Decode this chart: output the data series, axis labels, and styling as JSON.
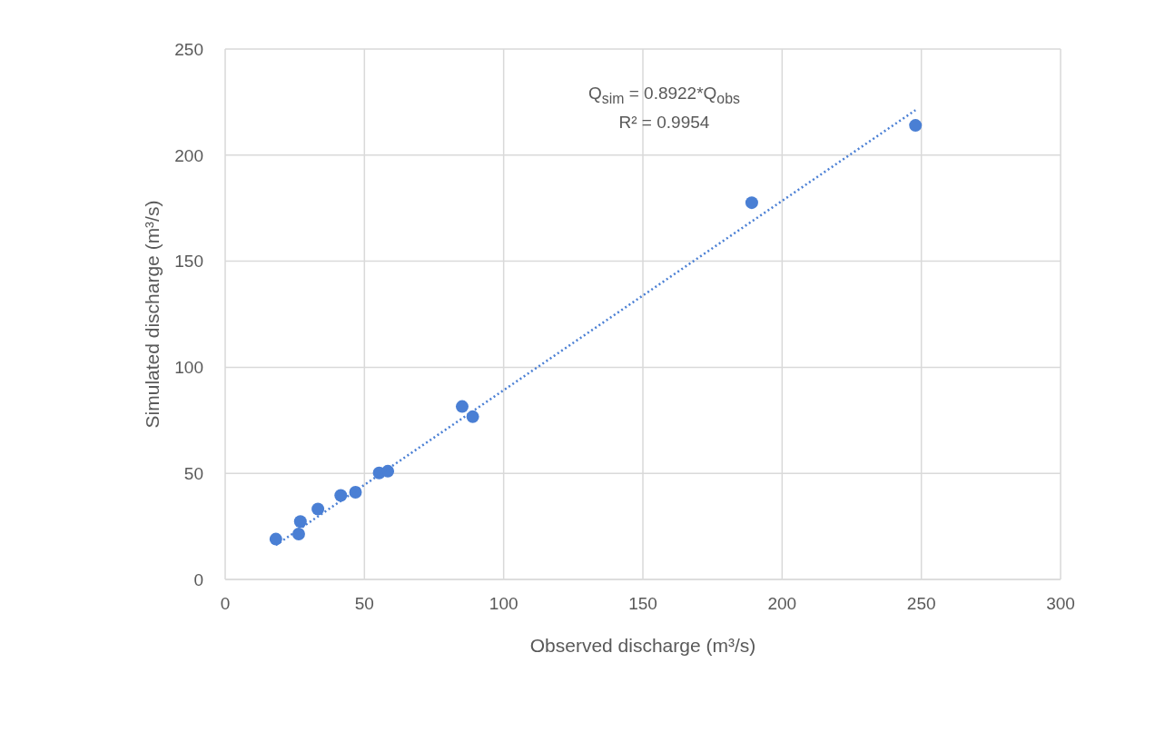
{
  "chart_data": {
    "type": "scatter",
    "xlabel": "Observed discharge (m³/s)",
    "ylabel": "Simulated discharge (m³/s)",
    "annotations": [
      "Q$_{sim}$ = 0.8922*Q$_{obs}$",
      "R² = 0.9954"
    ],
    "series": [
      {
        "color": "#4a7fd4",
        "marker": "circle",
        "x": [
          18.2,
          26.4,
          27.0,
          33.3,
          41.5,
          46.8,
          55.3,
          58.4,
          85.1,
          88.9,
          189.1,
          247.9
        ],
        "values": [
          19.0,
          21.4,
          27.3,
          33.2,
          39.6,
          41.1,
          50.2,
          51.0,
          81.5,
          76.7,
          177.6,
          214.0
        ]
      },
      {
        "type": "line",
        "color": "#4a7fd4",
        "line_style": "dotted",
        "marker": "none",
        "x": [
          18.2,
          247.9
        ],
        "values": [
          16.2,
          221.2
        ]
      }
    ],
    "xlim": [
      0,
      300
    ],
    "xticks": [
      0,
      50,
      100,
      150,
      200,
      250,
      300
    ],
    "ylim": [
      0,
      250
    ],
    "yticks": [
      0,
      50,
      100,
      150,
      200,
      250
    ],
    "grid": true,
    "legend": false
  }
}
